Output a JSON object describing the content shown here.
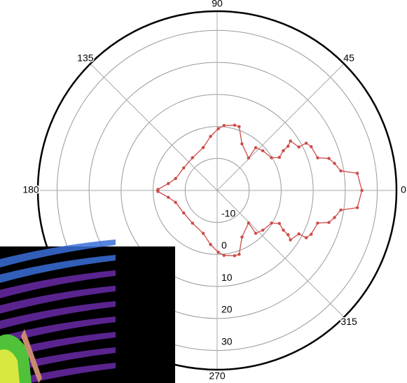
{
  "chart_data": {
    "type": "polar",
    "theta": [
      0,
      7,
      9,
      13,
      16,
      18,
      25,
      28,
      28,
      34,
      32,
      31,
      28,
      31,
      41,
      48,
      46,
      62,
      71,
      75,
      84,
      89,
      97,
      108,
      127,
      146,
      164,
      172,
      179,
      180,
      181,
      188,
      196,
      214,
      233,
      252,
      263,
      271,
      276,
      285,
      289,
      298,
      314,
      312,
      319,
      329,
      332,
      329,
      328,
      326,
      332,
      332,
      335,
      342,
      344,
      347,
      351,
      353,
      360
    ],
    "values": [
      25.2,
      24.1,
      19.1,
      17.6,
      16.3,
      13.0,
      12.4,
      11.5,
      8.9,
      7.6,
      6.1,
      4.1,
      2.0,
      -0.2,
      -1.1,
      -2.0,
      -5.9,
      -3.5,
      1.1,
      1.1,
      0.4,
      -0.7,
      -3.0,
      -5.9,
      -7.2,
      -7.4,
      -6.5,
      -4.6,
      -1.5,
      -1.5,
      -1.5,
      -4.6,
      -6.5,
      -7.4,
      -7.2,
      -5.9,
      -3.0,
      -0.7,
      0.4,
      1.1,
      1.1,
      -3.5,
      -5.9,
      -2.0,
      -1.1,
      -0.2,
      2.0,
      4.1,
      6.1,
      7.6,
      8.9,
      11.5,
      12.4,
      13.0,
      16.3,
      17.6,
      19.1,
      24.1,
      25.2
    ],
    "color": "#cc4b48",
    "rlim": [
      -20,
      36
    ],
    "rticks": [
      -10,
      0,
      10,
      20,
      30
    ],
    "thetaticks": [
      0,
      45,
      90,
      135,
      180,
      270,
      315
    ],
    "grid": true
  }
}
